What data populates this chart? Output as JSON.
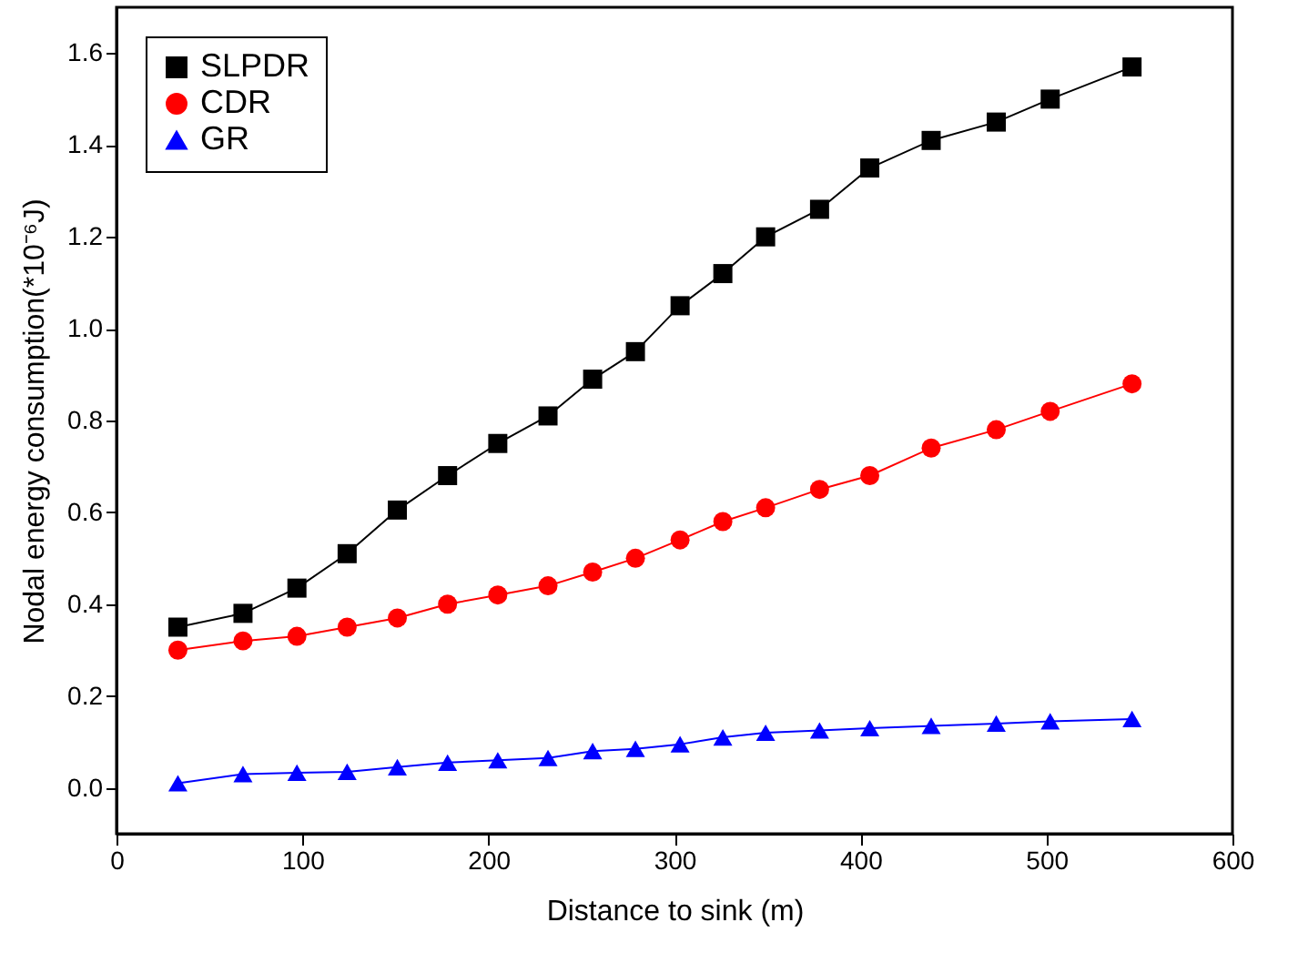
{
  "chart_data": {
    "type": "line",
    "xlabel": "Distance to sink (m)",
    "ylabel": "Nodal energy consumption(*10⁻⁶J)",
    "x": [
      33,
      68,
      97,
      124,
      151,
      178,
      205,
      232,
      256,
      279,
      303,
      326,
      349,
      378,
      405,
      438,
      473,
      502,
      546
    ],
    "xlim": [
      0,
      600
    ],
    "xticks": [
      0,
      100,
      200,
      300,
      400,
      500,
      600
    ],
    "ylim": [
      -0.1,
      1.7
    ],
    "yticks": [
      {
        "value": 0,
        "label": "0.0"
      },
      0.2,
      0.4,
      0.6,
      0.8,
      {
        "value": 1,
        "label": "1.0"
      },
      1.2,
      1.4,
      1.6
    ],
    "legend": "top left",
    "grid": false,
    "series": [
      {
        "name": "SLPDR",
        "color": "#000000",
        "marker": "square",
        "values": [
          0.35,
          0.38,
          0.435,
          0.51,
          0.605,
          0.68,
          0.75,
          0.81,
          0.89,
          0.95,
          1.05,
          1.12,
          1.2,
          1.26,
          1.35,
          1.41,
          1.45,
          1.5,
          1.57
        ]
      },
      {
        "name": "CDR",
        "color": "#ff0000",
        "marker": "circle",
        "values": [
          0.3,
          0.32,
          0.33,
          0.35,
          0.37,
          0.4,
          0.42,
          0.44,
          0.47,
          0.5,
          0.54,
          0.58,
          0.61,
          0.65,
          0.68,
          0.74,
          0.78,
          0.82,
          0.88
        ]
      },
      {
        "name": "GR",
        "color": "#0000ff",
        "marker": "triangle",
        "values": [
          0.01,
          0.03,
          0.033,
          0.035,
          0.045,
          0.055,
          0.06,
          0.065,
          0.08,
          0.085,
          0.095,
          0.11,
          0.12,
          0.125,
          0.13,
          0.135,
          0.14,
          0.145,
          0.15
        ]
      }
    ]
  }
}
